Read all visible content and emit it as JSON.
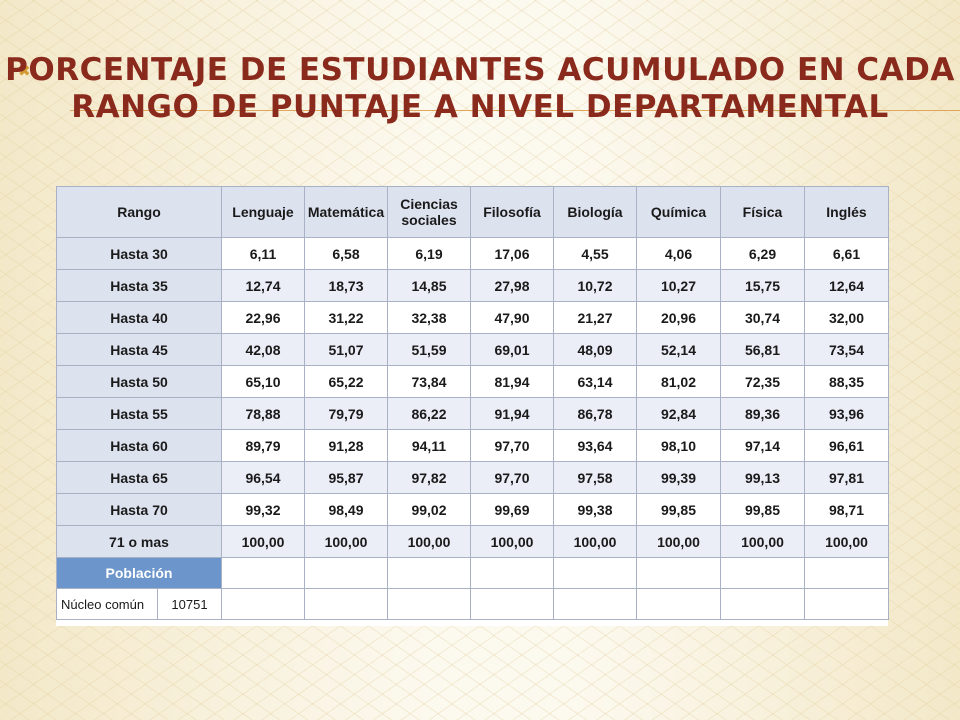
{
  "title": "PORCENTAJE DE ESTUDIANTES ACUMULADO EN CADA RANGO DE PUNTAJE A NIVEL DEPARTAMENTAL",
  "bullet": "✖",
  "table": {
    "header_rango": "Rango",
    "subjects": [
      "Lenguaje",
      "Matemática",
      "Ciencias sociales",
      "Filosofía",
      "Biología",
      "Química",
      "Física",
      "Inglés"
    ],
    "rows": [
      {
        "rango": "Hasta 30",
        "values": [
          "6,11",
          "6,58",
          "6,19",
          "17,06",
          "4,55",
          "4,06",
          "6,29",
          "6,61"
        ]
      },
      {
        "rango": "Hasta 35",
        "values": [
          "12,74",
          "18,73",
          "14,85",
          "27,98",
          "10,72",
          "10,27",
          "15,75",
          "12,64"
        ]
      },
      {
        "rango": "Hasta 40",
        "values": [
          "22,96",
          "31,22",
          "32,38",
          "47,90",
          "21,27",
          "20,96",
          "30,74",
          "32,00"
        ]
      },
      {
        "rango": "Hasta 45",
        "values": [
          "42,08",
          "51,07",
          "51,59",
          "69,01",
          "48,09",
          "52,14",
          "56,81",
          "73,54"
        ]
      },
      {
        "rango": "Hasta 50",
        "values": [
          "65,10",
          "65,22",
          "73,84",
          "81,94",
          "63,14",
          "81,02",
          "72,35",
          "88,35"
        ]
      },
      {
        "rango": "Hasta 55",
        "values": [
          "78,88",
          "79,79",
          "86,22",
          "91,94",
          "86,78",
          "92,84",
          "89,36",
          "93,96"
        ]
      },
      {
        "rango": "Hasta 60",
        "values": [
          "89,79",
          "91,28",
          "94,11",
          "97,70",
          "93,64",
          "98,10",
          "97,14",
          "96,61"
        ]
      },
      {
        "rango": "Hasta 65",
        "values": [
          "96,54",
          "95,87",
          "97,82",
          "97,70",
          "97,58",
          "99,39",
          "99,13",
          "97,81"
        ]
      },
      {
        "rango": "Hasta 70",
        "values": [
          "99,32",
          "98,49",
          "99,02",
          "99,69",
          "99,38",
          "99,85",
          "99,85",
          "98,71"
        ]
      },
      {
        "rango": "71 o mas",
        "values": [
          "100,00",
          "100,00",
          "100,00",
          "100,00",
          "100,00",
          "100,00",
          "100,00",
          "100,00"
        ]
      }
    ],
    "poblacion_label": "Población",
    "nucleo_label": "Núcleo común",
    "nucleo_value": "10751"
  },
  "colors": {
    "title": "#8a2a1d",
    "header_bg": "#dde2ef",
    "alt_row_bg": "#ebedf7",
    "poblacion_bg": "#6b95cb",
    "accent_line": "#e2a65a"
  }
}
